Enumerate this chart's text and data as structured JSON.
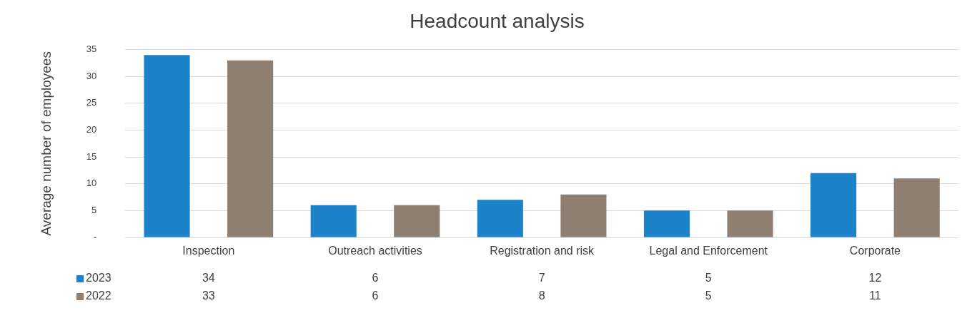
{
  "chart_data": {
    "type": "bar",
    "title": "Headcount analysis",
    "ylabel": "Average number of employees",
    "categories": [
      "Inspection",
      "Outreach activities",
      "Registration and risk",
      "Legal and Enforcement",
      "Corporate"
    ],
    "series": [
      {
        "name": "2023",
        "color": "#1c82c9",
        "values": [
          34,
          6,
          7,
          5,
          12
        ]
      },
      {
        "name": "2022",
        "color": "#8e7f70",
        "values": [
          33,
          6,
          8,
          5,
          11
        ]
      }
    ],
    "ylim": [
      0,
      35
    ],
    "yticks": [
      {
        "value": 0,
        "label": "-"
      },
      5,
      10,
      15,
      20,
      25,
      30,
      35
    ],
    "grid": "y",
    "legend": "bottom left",
    "data_labels": true
  }
}
